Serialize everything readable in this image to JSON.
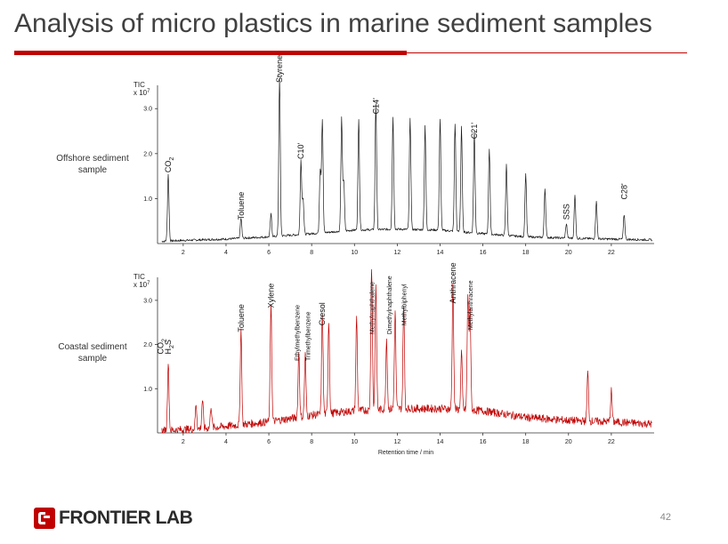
{
  "slide": {
    "title": "Analysis of micro plastics in marine sediment samples",
    "page_number": "42",
    "logo_text": "FRONTIER LAB",
    "accent_color": "#c00000"
  },
  "chart_data": [
    {
      "type": "line",
      "sample_label": "Offshore sediment sample",
      "ylabel": "TIC",
      "yunit": "x 10",
      "yunit_sup": "7",
      "ylim": [
        0,
        3.4
      ],
      "xlim": [
        0.8,
        24
      ],
      "xticks": [
        2,
        4,
        6,
        8,
        10,
        12,
        14,
        16,
        18,
        20,
        22
      ],
      "yticks": [
        1.0,
        2.0,
        3.0
      ],
      "xlabel": "",
      "color": "#1a1a1a",
      "baseline": [
        [
          1.0,
          0.05
        ],
        [
          2,
          0.07
        ],
        [
          4,
          0.1
        ],
        [
          6,
          0.15
        ],
        [
          8,
          0.22
        ],
        [
          10,
          0.3
        ],
        [
          12,
          0.32
        ],
        [
          14,
          0.3
        ],
        [
          16,
          0.22
        ],
        [
          18,
          0.15
        ],
        [
          20,
          0.12
        ],
        [
          22,
          0.1
        ],
        [
          24,
          0.08
        ]
      ],
      "noise": 0.05,
      "peaks": [
        {
          "x": 1.3,
          "y": 1.5
        },
        {
          "x": 4.7,
          "y": 0.45
        },
        {
          "x": 6.5,
          "y": 3.5
        },
        {
          "x": 6.1,
          "y": 0.5
        },
        {
          "x": 7.5,
          "y": 1.65
        },
        {
          "x": 7.6,
          "y": 0.8
        },
        {
          "x": 8.4,
          "y": 1.4
        },
        {
          "x": 8.5,
          "y": 2.5
        },
        {
          "x": 9.4,
          "y": 2.5
        },
        {
          "x": 9.5,
          "y": 1.1
        },
        {
          "x": 10.2,
          "y": 2.45
        },
        {
          "x": 11.0,
          "y": 2.8
        },
        {
          "x": 11.8,
          "y": 2.5
        },
        {
          "x": 12.6,
          "y": 2.45
        },
        {
          "x": 13.3,
          "y": 2.3
        },
        {
          "x": 14.0,
          "y": 2.45
        },
        {
          "x": 14.7,
          "y": 2.4
        },
        {
          "x": 15.0,
          "y": 2.35
        },
        {
          "x": 15.6,
          "y": 2.25
        },
        {
          "x": 16.3,
          "y": 1.9
        },
        {
          "x": 17.1,
          "y": 1.6
        },
        {
          "x": 18.0,
          "y": 1.4
        },
        {
          "x": 18.9,
          "y": 1.1
        },
        {
          "x": 19.9,
          "y": 0.32
        },
        {
          "x": 20.3,
          "y": 0.95
        },
        {
          "x": 21.3,
          "y": 0.85
        },
        {
          "x": 22.6,
          "y": 0.55
        }
      ],
      "annotations": [
        {
          "text": "CO",
          "sub": "2",
          "x": 1.3,
          "y": 1.5
        },
        {
          "text": "Toluene",
          "x": 4.7,
          "y": 0.45
        },
        {
          "text": "Styrene",
          "x": 6.5,
          "y": 3.5
        },
        {
          "text": "C10'",
          "x": 7.5,
          "y": 1.8
        },
        {
          "text": "C14'",
          "x": 11.0,
          "y": 2.8
        },
        {
          "text": "C21'",
          "x": 15.6,
          "y": 2.25
        },
        {
          "text": "SSS",
          "x": 19.9,
          "y": 0.45
        },
        {
          "text": "C28'",
          "x": 22.6,
          "y": 0.9
        }
      ]
    },
    {
      "type": "line",
      "sample_label": "Coastal sediment sample",
      "ylabel": "TIC",
      "yunit": "x 10",
      "yunit_sup": "7",
      "ylim": [
        0,
        3.4
      ],
      "xlim": [
        0.8,
        24
      ],
      "xticks": [
        2,
        4,
        6,
        8,
        10,
        12,
        14,
        16,
        18,
        20,
        22
      ],
      "yticks": [
        1.0,
        2.0,
        3.0
      ],
      "xlabel": "Retention time / min",
      "color": "#c00000",
      "baseline": [
        [
          1.0,
          0.05
        ],
        [
          3,
          0.1
        ],
        [
          6,
          0.25
        ],
        [
          8,
          0.4
        ],
        [
          10,
          0.5
        ],
        [
          12,
          0.55
        ],
        [
          14,
          0.55
        ],
        [
          16,
          0.5
        ],
        [
          18,
          0.35
        ],
        [
          20,
          0.28
        ],
        [
          22,
          0.25
        ],
        [
          24,
          0.2
        ]
      ],
      "noise": 0.18,
      "peaks": [
        {
          "x": 1.3,
          "y": 1.55
        },
        {
          "x": 2.6,
          "y": 0.55
        },
        {
          "x": 2.9,
          "y": 0.65
        },
        {
          "x": 3.3,
          "y": 0.5
        },
        {
          "x": 4.7,
          "y": 2.15
        },
        {
          "x": 6.1,
          "y": 2.7
        },
        {
          "x": 7.4,
          "y": 1.5
        },
        {
          "x": 7.7,
          "y": 1.4
        },
        {
          "x": 8.5,
          "y": 2.3
        },
        {
          "x": 8.8,
          "y": 2.1
        },
        {
          "x": 10.1,
          "y": 2.1
        },
        {
          "x": 10.8,
          "y": 3.4
        },
        {
          "x": 11.0,
          "y": 2.8
        },
        {
          "x": 11.5,
          "y": 1.6
        },
        {
          "x": 11.9,
          "y": 2.2
        },
        {
          "x": 12.3,
          "y": 2.3
        },
        {
          "x": 14.6,
          "y": 2.8
        },
        {
          "x": 15.0,
          "y": 1.3
        },
        {
          "x": 15.3,
          "y": 2.6
        },
        {
          "x": 15.4,
          "y": 2.3
        },
        {
          "x": 20.9,
          "y": 1.1
        },
        {
          "x": 22.0,
          "y": 0.7
        }
      ],
      "annotations": [
        {
          "text": "CO",
          "sub": "2",
          "x": 0.95,
          "y": 1.7
        },
        {
          "text": "H",
          "sub": "2",
          "post": "S",
          "x": 1.3,
          "y": 1.7
        },
        {
          "text": "Toluene",
          "x": 4.7,
          "y": 2.2
        },
        {
          "text": "Xylene",
          "x": 6.1,
          "y": 2.75
        },
        {
          "text": "Ethylmethylbenzene",
          "x": 7.3,
          "y": 1.55
        },
        {
          "text": "Trimethylbenzene",
          "x": 7.8,
          "y": 1.55
        },
        {
          "text": "Cresol",
          "x": 8.5,
          "y": 2.35
        },
        {
          "text": "Methylnaphthalene",
          "x": 10.8,
          "y": 2.15
        },
        {
          "text": "Dimethylnaphthalene",
          "x": 11.6,
          "y": 2.15
        },
        {
          "text": "Methylbiphenyl",
          "x": 12.3,
          "y": 2.35
        },
        {
          "text": "Anthracene",
          "x": 14.6,
          "y": 2.85
        },
        {
          "text": "Methylanthracene",
          "x": 15.4,
          "y": 2.25
        }
      ]
    }
  ]
}
